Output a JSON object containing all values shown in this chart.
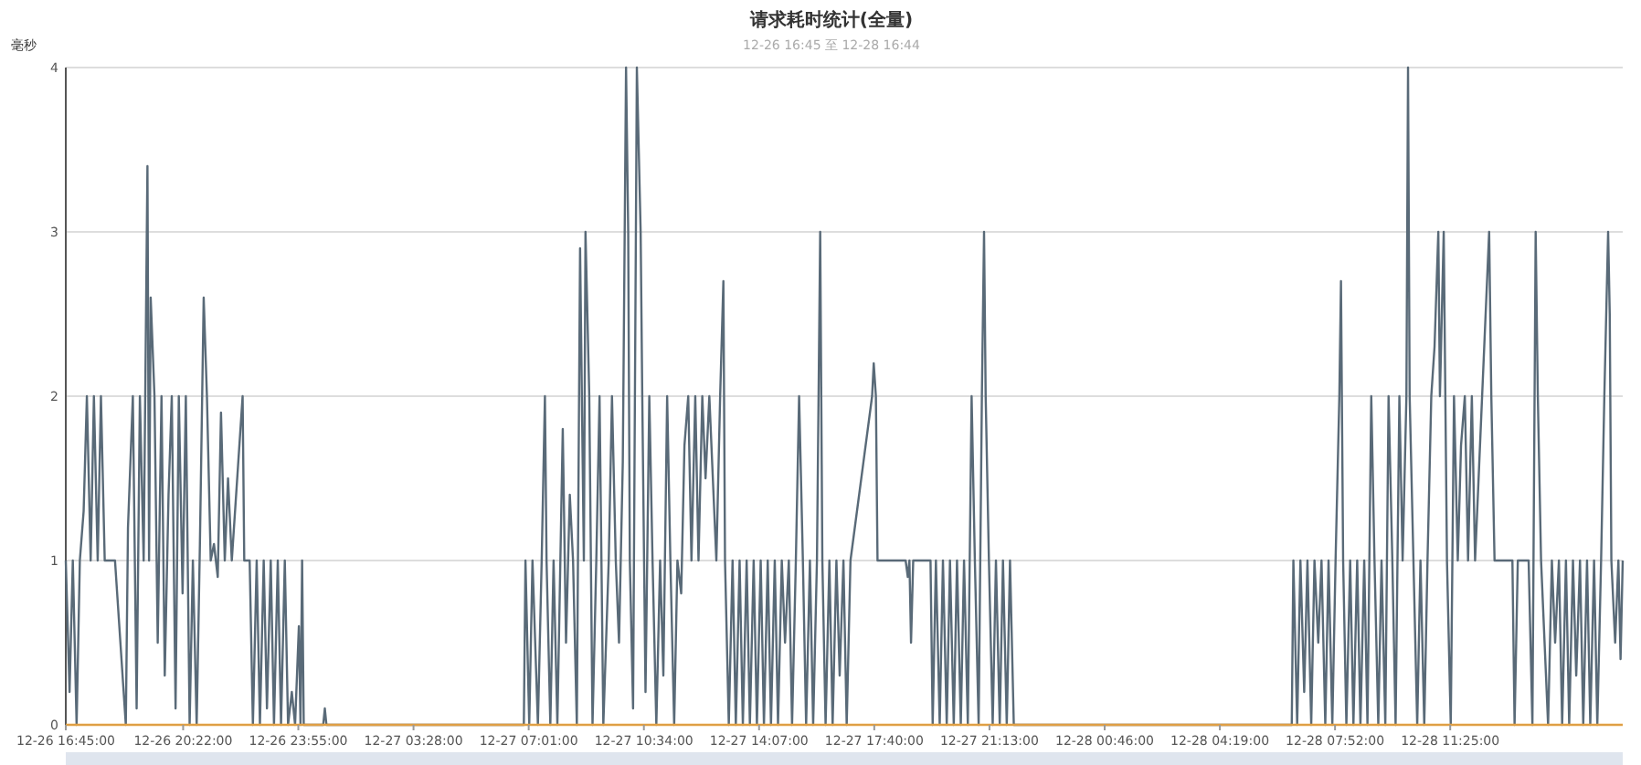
{
  "chart_data": {
    "type": "line",
    "title": "请求耗时统计(全量)",
    "subtitle": "12-26 16:45 至 12-28 16:44",
    "ylabel": "毫秒",
    "xlim": [
      "--12-26T16:45",
      "--12-28T16:44"
    ],
    "ylim": [
      0,
      4
    ],
    "yticks": [
      0,
      1,
      2,
      3,
      4
    ],
    "xticks": [
      {
        "value": "--12-26T16:45",
        "label": "12-26 16:45:00"
      },
      {
        "value": "--12-26T20:22",
        "label": "12-26 20:22:00"
      },
      {
        "value": "--12-26T23:55",
        "label": "12-26 23:55:00"
      },
      {
        "value": "--12-27T03:28",
        "label": "12-27 03:28:00"
      },
      {
        "value": "--12-27T07:01",
        "label": "12-27 07:01:00"
      },
      {
        "value": "--12-27T10:34",
        "label": "12-27 10:34:00"
      },
      {
        "value": "--12-27T14:07",
        "label": "12-27 14:07:00"
      },
      {
        "value": "--12-27T17:40",
        "label": "12-27 17:40:00"
      },
      {
        "value": "--12-27T21:13",
        "label": "12-27 21:13:00"
      },
      {
        "value": "--12-28T00:46",
        "label": "12-28 00:46:00"
      },
      {
        "value": "--12-28T04:19",
        "label": "12-28 04:19:00"
      },
      {
        "value": "--12-28T07:52",
        "label": "12-28 07:52:00"
      },
      {
        "value": "--12-28T11:25",
        "label": "12-28 11:25:00"
      }
    ],
    "grid": "y",
    "marker": "none",
    "line_style": "solid",
    "series": [
      {
        "color": "#596a78",
        "x": [
          "--12-26T16:45",
          "--12-26T16:52",
          "--12-26T16:58",
          "--12-26T17:05",
          "--12-26T17:11",
          "--12-26T17:18",
          "--12-26T17:24",
          "--12-26T17:31",
          "--12-26T17:37",
          "--12-26T17:44",
          "--12-26T17:50",
          "--12-26T17:57",
          "--12-26T18:16",
          "--12-26T18:36",
          "--12-26T18:40",
          "--12-26T18:49",
          "--12-26T18:56",
          "--12-26T19:02",
          "--12-26T19:09",
          "--12-26T19:16",
          "--12-26T19:19",
          "--12-26T19:22",
          "--12-26T19:29",
          "--12-26T19:35",
          "--12-26T19:42",
          "--12-26T19:48",
          "--12-26T19:55",
          "--12-26T20:01",
          "--12-26T20:08",
          "--12-26T20:14",
          "--12-26T20:21",
          "--12-26T20:27",
          "--12-26T20:34",
          "--12-26T20:40",
          "--12-26T20:47",
          "--12-26T20:53",
          "--12-26T21:00",
          "--12-26T21:06",
          "--12-26T21:13",
          "--12-26T21:19",
          "--12-26T21:26",
          "--12-26T21:32",
          "--12-26T21:39",
          "--12-26T21:45",
          "--12-26T21:52",
          "--12-26T22:12",
          "--12-26T22:15",
          "--12-26T22:25",
          "--12-26T22:31",
          "--12-26T22:38",
          "--12-26T22:44",
          "--12-26T22:51",
          "--12-26T22:57",
          "--12-26T23:04",
          "--12-26T23:10",
          "--12-26T23:17",
          "--12-26T23:23",
          "--12-26T23:30",
          "--12-26T23:36",
          "--12-26T23:43",
          "--12-26T23:49",
          "--12-26T23:56",
          "--12-26T23:59",
          "--12-27T00:02",
          "--12-27T00:05",
          "--12-27T00:41",
          "--12-27T00:44",
          "--12-27T00:47",
          "--12-27T06:52",
          "--12-27T06:55",
          "--12-27T07:02",
          "--12-27T07:08",
          "--12-27T07:18",
          "--12-27T07:25",
          "--12-27T07:31",
          "--12-27T07:34",
          "--12-27T07:41",
          "--12-27T07:47",
          "--12-27T07:54",
          "--12-27T08:04",
          "--12-27T08:10",
          "--12-27T08:17",
          "--12-27T08:23",
          "--12-27T08:30",
          "--12-27T08:36",
          "--12-27T08:43",
          "--12-27T08:46",
          "--12-27T08:53",
          "--12-27T08:59",
          "--12-27T09:06",
          "--12-27T09:12",
          "--12-27T09:19",
          "--12-27T09:29",
          "--12-27T09:35",
          "--12-27T09:42",
          "--12-27T09:48",
          "--12-27T09:55",
          "--12-27T10:01",
          "--12-27T10:05",
          "--12-27T10:08",
          "--12-27T10:14",
          "--12-27T10:21",
          "--12-27T10:28",
          "--12-27T10:31",
          "--12-27T10:37",
          "--12-27T10:44",
          "--12-27T10:50",
          "--12-27T10:57",
          "--12-27T11:04",
          "--12-27T11:10",
          "--12-27T11:17",
          "--12-27T11:23",
          "--12-27T11:30",
          "--12-27T11:36",
          "--12-27T11:43",
          "--12-27T11:49",
          "--12-27T11:56",
          "--12-27T12:02",
          "--12-27T12:09",
          "--12-27T12:15",
          "--12-27T12:22",
          "--12-27T12:28",
          "--12-27T12:35",
          "--12-27T12:48",
          "--12-27T12:55",
          "--12-27T13:01",
          "--12-27T13:04",
          "--12-27T13:11",
          "--12-27T13:18",
          "--12-27T13:24",
          "--12-27T13:31",
          "--12-27T13:37",
          "--12-27T13:44",
          "--12-27T13:50",
          "--12-27T13:57",
          "--12-27T14:03",
          "--12-27T14:10",
          "--12-27T14:16",
          "--12-27T14:23",
          "--12-27T14:29",
          "--12-27T14:36",
          "--12-27T14:42",
          "--12-27T14:49",
          "--12-27T14:55",
          "--12-27T15:02",
          "--12-27T15:08",
          "--12-27T15:15",
          "--12-27T15:21",
          "--12-27T15:28",
          "--12-27T15:34",
          "--12-27T15:41",
          "--12-27T15:47",
          "--12-27T15:54",
          "--12-27T16:00",
          "--12-27T16:04",
          "--12-27T16:10",
          "--12-27T16:17",
          "--12-27T16:23",
          "--12-27T16:30",
          "--12-27T16:36",
          "--12-27T16:43",
          "--12-27T16:49",
          "--12-27T16:56",
          "--12-27T17:36",
          "--12-27T17:39",
          "--12-27T17:43",
          "--12-27T17:46",
          "--12-27T18:38",
          "--12-27T18:42",
          "--12-27T18:45",
          "--12-27T18:48",
          "--12-27T18:52",
          "--12-27T19:24",
          "--12-27T19:28",
          "--12-27T19:34",
          "--12-27T19:41",
          "--12-27T19:47",
          "--12-27T19:54",
          "--12-27T20:00",
          "--12-27T20:07",
          "--12-27T20:13",
          "--12-27T20:20",
          "--12-27T20:26",
          "--12-27T20:33",
          "--12-27T20:40",
          "--12-27T20:46",
          "--12-27T20:53",
          "--12-27T20:59",
          "--12-27T21:03",
          "--12-27T21:06",
          "--12-27T21:12",
          "--12-27T21:19",
          "--12-27T21:25",
          "--12-27T21:32",
          "--12-27T21:38",
          "--12-27T21:45",
          "--12-27T21:51",
          "--12-27T21:58",
          "--12-28T06:32",
          "--12-28T06:35",
          "--12-28T06:42",
          "--12-28T06:48",
          "--12-28T06:55",
          "--12-28T07:01",
          "--12-28T07:08",
          "--12-28T07:14",
          "--12-28T07:21",
          "--12-28T07:27",
          "--12-28T07:34",
          "--12-28T07:40",
          "--12-28T07:47",
          "--12-28T07:53",
          "--12-28T08:00",
          "--12-28T08:03",
          "--12-28T08:07",
          "--12-28T08:13",
          "--12-28T08:20",
          "--12-28T08:26",
          "--12-28T08:33",
          "--12-28T08:39",
          "--12-28T08:46",
          "--12-28T08:52",
          "--12-28T08:59",
          "--12-28T09:05",
          "--12-28T09:12",
          "--12-28T09:18",
          "--12-28T09:25",
          "--12-28T09:31",
          "--12-28T09:38",
          "--12-28T09:44",
          "--12-28T09:51",
          "--12-28T09:57",
          "--12-28T10:04",
          "--12-28T10:07",
          "--12-28T10:10",
          "--12-28T10:17",
          "--12-28T10:24",
          "--12-28T10:30",
          "--12-28T10:37",
          "--12-28T10:43",
          "--12-28T10:50",
          "--12-28T10:56",
          "--12-28T11:03",
          "--12-28T11:06",
          "--12-28T11:13",
          "--12-28T11:19",
          "--12-28T11:26",
          "--12-28T11:32",
          "--12-28T11:39",
          "--12-28T11:45",
          "--12-28T11:52",
          "--12-28T11:58",
          "--12-28T12:05",
          "--12-28T12:11",
          "--12-28T12:37",
          "--12-28T12:41",
          "--12-28T12:47",
          "--12-28T13:20",
          "--12-28T13:24",
          "--12-28T13:30",
          "--12-28T13:50",
          "--12-28T13:57",
          "--12-28T14:03",
          "--12-28T14:07",
          "--12-28T14:13",
          "--12-28T14:26",
          "--12-28T14:33",
          "--12-28T14:39",
          "--12-28T14:46",
          "--12-28T14:52",
          "--12-28T14:59",
          "--12-28T15:05",
          "--12-28T15:12",
          "--12-28T15:18",
          "--12-28T15:25",
          "--12-28T15:31",
          "--12-28T15:38",
          "--12-28T15:44",
          "--12-28T15:51",
          "--12-28T15:57",
          "--12-28T16:04",
          "--12-28T16:10",
          "--12-28T16:17",
          "--12-28T16:20",
          "--12-28T16:23",
          "--12-28T16:30",
          "--12-28T16:36",
          "--12-28T16:40",
          "--12-28T16:44"
        ],
        "values": [
          1,
          0.2,
          1,
          0,
          1,
          1.3,
          2,
          1,
          2,
          1,
          2,
          1,
          1,
          0,
          1.2,
          2,
          0.1,
          2,
          1,
          3.4,
          1,
          2.6,
          2,
          0.5,
          2,
          0.3,
          1.4,
          2,
          0.1,
          2,
          0.8,
          2,
          0,
          1,
          0,
          1.1,
          2.6,
          2,
          1,
          1.1,
          0.9,
          1.9,
          1,
          1.5,
          1,
          2,
          1,
          1,
          0,
          1,
          0,
          1,
          0.1,
          1,
          0,
          1,
          0,
          1,
          0,
          0.2,
          0,
          0.6,
          0,
          1,
          0,
          0,
          0.1,
          0,
          0,
          1,
          0,
          1,
          0,
          1,
          2,
          1,
          0,
          1,
          0,
          1.8,
          0.5,
          1.4,
          1,
          0,
          2.9,
          1,
          3,
          2,
          0,
          1,
          2,
          0,
          1,
          2,
          1,
          0.5,
          1.6,
          4,
          3,
          1,
          0.1,
          4,
          3,
          2,
          0.2,
          2,
          1,
          0,
          1,
          0.3,
          2,
          1,
          0,
          1,
          0.8,
          1.7,
          2,
          1,
          2,
          1,
          2,
          1.5,
          2,
          1,
          2,
          2.7,
          1,
          0,
          1,
          0,
          1,
          0,
          1,
          0,
          1,
          0,
          1,
          0,
          1,
          0,
          1,
          0,
          1,
          0.5,
          1,
          0,
          1,
          2,
          1,
          0,
          1,
          0,
          1,
          3,
          1,
          0,
          1,
          0,
          1,
          0.3,
          1,
          0,
          1,
          2,
          2.2,
          2,
          1,
          1,
          0.9,
          1,
          0.5,
          1,
          1,
          0,
          1,
          0,
          1,
          0,
          1,
          0,
          1,
          0,
          1,
          0,
          2,
          1,
          0,
          2,
          3,
          2,
          1,
          0,
          1,
          0,
          1,
          0,
          1,
          0,
          0,
          1,
          0,
          1,
          0.2,
          1,
          0,
          1,
          0.5,
          1,
          0,
          1,
          0,
          1,
          2,
          2.7,
          1,
          0,
          1,
          0,
          1,
          0,
          1,
          0,
          2,
          1,
          0,
          1,
          0,
          2,
          1,
          0,
          2,
          1,
          2,
          4,
          2,
          1,
          0,
          1,
          0,
          1,
          2,
          2.3,
          3,
          2,
          3,
          1,
          0,
          2,
          1,
          1.7,
          2,
          1,
          2,
          1,
          3,
          2,
          1,
          1,
          0,
          1,
          1,
          0,
          3,
          2,
          1,
          0,
          1,
          0.5,
          1,
          0,
          1,
          0,
          1,
          0.3,
          1,
          0,
          1,
          0,
          1,
          0,
          1,
          2,
          3,
          2.5,
          1,
          0.5,
          1,
          0.4,
          1
        ]
      },
      {
        "color": "#f0a030",
        "x": [
          "--12-26T16:45",
          "--12-28T16:44"
        ],
        "values": [
          0,
          0
        ]
      }
    ]
  }
}
